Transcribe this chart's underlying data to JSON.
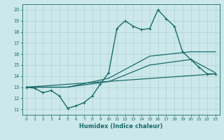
{
  "xlabel": "Humidex (Indice chaleur)",
  "xlim": [
    -0.5,
    23.5
  ],
  "ylim": [
    10.5,
    20.5
  ],
  "xticks": [
    0,
    1,
    2,
    3,
    4,
    5,
    6,
    7,
    8,
    9,
    10,
    11,
    12,
    13,
    14,
    15,
    16,
    17,
    18,
    19,
    20,
    21,
    22,
    23
  ],
  "yticks": [
    11,
    12,
    13,
    14,
    15,
    16,
    17,
    18,
    19,
    20
  ],
  "bg_color": "#cce8ea",
  "grid_color": "#a8cccc",
  "line_color": "#1a6b6b",
  "lines": [
    {
      "x": [
        0,
        1,
        2,
        3,
        4,
        5,
        6,
        7,
        8,
        9,
        10,
        11,
        12,
        13,
        14,
        15,
        16,
        17,
        18,
        19,
        20,
        21,
        22,
        23
      ],
      "y": [
        13.0,
        12.9,
        12.5,
        12.7,
        12.2,
        11.1,
        11.3,
        11.6,
        12.2,
        13.3,
        14.3,
        18.3,
        19.0,
        18.5,
        18.2,
        18.3,
        20.0,
        19.2,
        18.5,
        16.2,
        15.5,
        14.8,
        14.2,
        14.2
      ],
      "marker": "+",
      "ms": 3,
      "lw": 1.0
    },
    {
      "x": [
        0,
        5,
        10,
        15,
        20,
        23
      ],
      "y": [
        13.0,
        13.0,
        13.8,
        15.8,
        16.2,
        16.2
      ],
      "marker": null,
      "ms": 0,
      "lw": 0.9
    },
    {
      "x": [
        0,
        5,
        10,
        15,
        20,
        23
      ],
      "y": [
        13.0,
        13.0,
        13.5,
        15.0,
        15.5,
        14.3
      ],
      "marker": null,
      "ms": 0,
      "lw": 0.9
    },
    {
      "x": [
        0,
        23
      ],
      "y": [
        13.0,
        14.2
      ],
      "marker": null,
      "ms": 0,
      "lw": 0.9
    }
  ]
}
